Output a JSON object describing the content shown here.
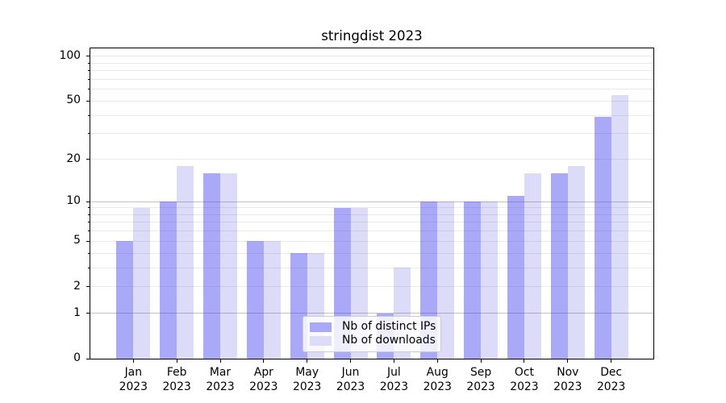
{
  "chart_data": {
    "type": "bar",
    "title": "stringdist 2023",
    "categories": [
      "Jan",
      "Feb",
      "Mar",
      "Apr",
      "May",
      "Jun",
      "Jul",
      "Aug",
      "Sep",
      "Oct",
      "Nov",
      "Dec"
    ],
    "x_year_label": "2023",
    "series": [
      {
        "name": "Nb of distinct IPs",
        "color": "#a9a9f8",
        "base_rgb": [
          60,
          60,
          240
        ],
        "alpha": 0.44,
        "values": [
          5,
          10,
          16,
          5,
          4,
          9,
          1,
          10,
          10,
          11,
          16,
          39
        ]
      },
      {
        "name": "Nb of downloads",
        "color": "#dcdcf9",
        "base_rgb": [
          50,
          50,
          220
        ],
        "alpha": 0.17,
        "values": [
          9,
          18,
          16,
          5,
          4,
          9,
          3,
          10,
          10,
          16,
          18,
          55
        ]
      }
    ],
    "yscale": "log1p",
    "ylim": [
      0,
      113
    ],
    "yticks_labeled": [
      0,
      1,
      2,
      5,
      10,
      20,
      50,
      100
    ],
    "yticks_minor": [
      3,
      4,
      6,
      7,
      8,
      9,
      30,
      40,
      60,
      70,
      80,
      90
    ],
    "grid_emphasis_values": [
      1,
      10
    ],
    "legend": {
      "position": "lower center"
    },
    "colors": {
      "grid_major": "#c3c3c3",
      "grid_minor": "#eaeaea",
      "spine": "#000000",
      "legend_border": "#cccccc",
      "background": "#ffffff",
      "text": "#000000"
    }
  }
}
